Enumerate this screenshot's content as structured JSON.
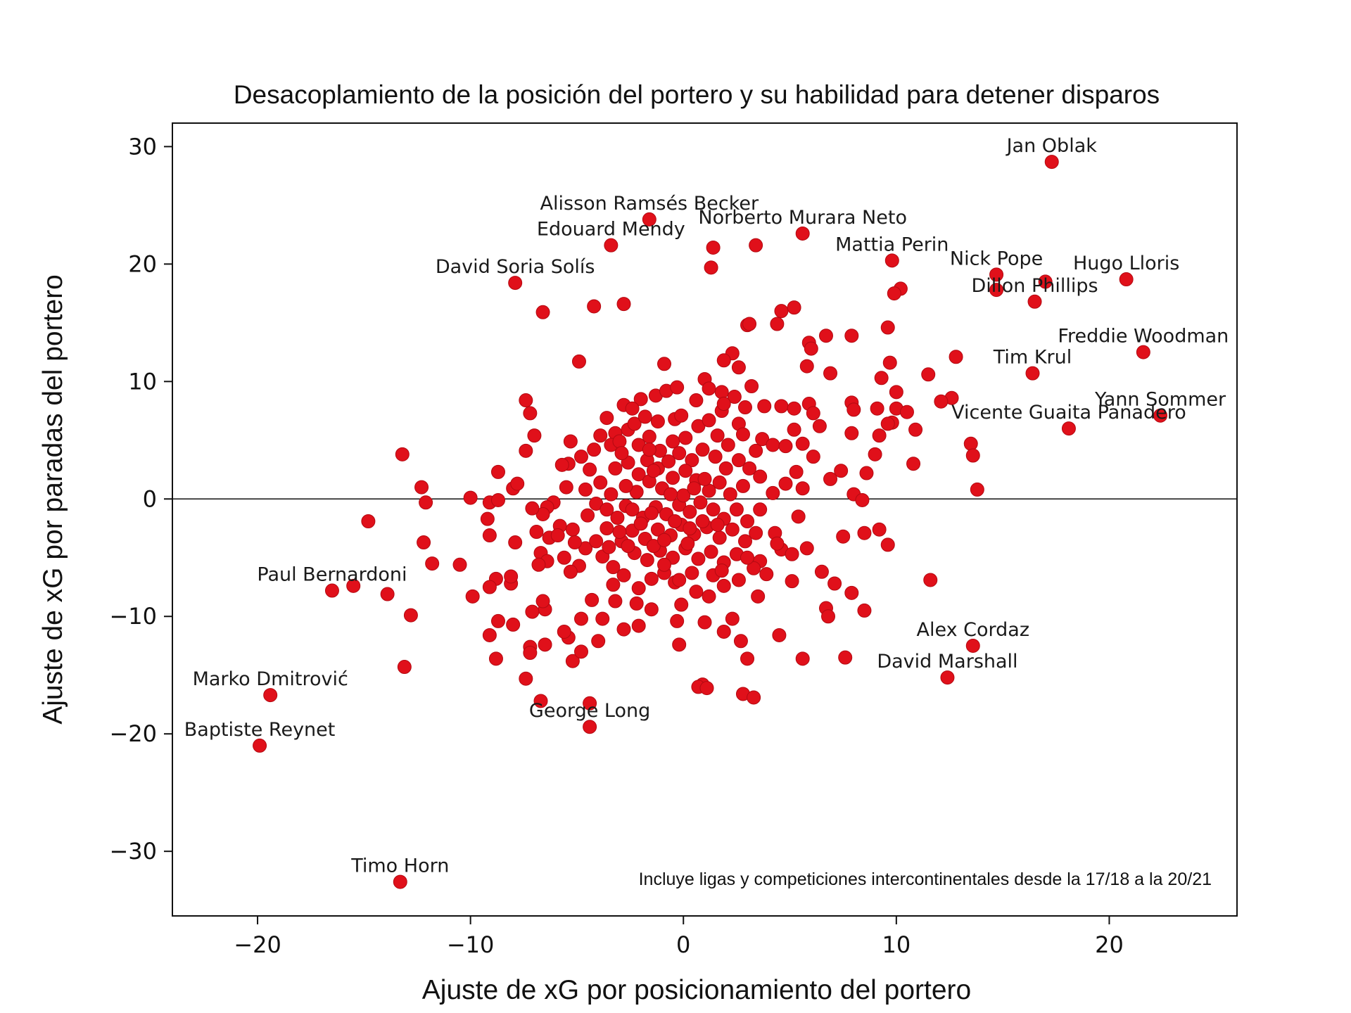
{
  "chart_data": {
    "type": "scatter",
    "title": "Desacoplamiento de la posición del portero y su habilidad para detener disparos",
    "xlabel": "Ajuste de xG por posicionamiento del portero",
    "ylabel": "Ajuste de xG por paradas del portero",
    "xlim": [
      -24,
      26
    ],
    "ylim": [
      -35.5,
      32
    ],
    "xticks": [
      -20,
      -10,
      0,
      10,
      20
    ],
    "yticks": [
      -30,
      -20,
      -10,
      0,
      10,
      20,
      30
    ],
    "xtick_labels": [
      "−20",
      "−10",
      "0",
      "10",
      "20"
    ],
    "ytick_labels": [
      "−30",
      "−20",
      "−10",
      "0",
      "10",
      "20",
      "30"
    ],
    "reference_line_y": 0,
    "grid": false,
    "point_color": "#e0101a",
    "point_edge_color": "#b30a12",
    "note": "Incluye ligas y competiciones intercontinentales desde la 17/18 a la 20/21",
    "labeled_points": [
      {
        "name": "Jan Oblak",
        "x": 17.3,
        "y": 28.7
      },
      {
        "name": "Alisson Ramsés Becker",
        "x": -1.6,
        "y": 23.8
      },
      {
        "name": "Norberto Murara Neto",
        "x": 5.6,
        "y": 22.6
      },
      {
        "name": "Edouard Mendy",
        "x": -3.4,
        "y": 21.6
      },
      {
        "name": "Mattia Perin",
        "x": 9.8,
        "y": 20.3
      },
      {
        "name": "Nick Pope",
        "x": 14.7,
        "y": 19.1
      },
      {
        "name": "Hugo Lloris",
        "x": 20.8,
        "y": 18.7
      },
      {
        "name": "Dillon Phillips",
        "x": 16.5,
        "y": 16.8
      },
      {
        "name": "David Soria Solís",
        "x": -7.9,
        "y": 18.4
      },
      {
        "name": "Freddie Woodman",
        "x": 21.6,
        "y": 12.5
      },
      {
        "name": "Tim Krul",
        "x": 16.4,
        "y": 10.7
      },
      {
        "name": "Yann Sommer",
        "x": 22.4,
        "y": 7.1
      },
      {
        "name": "Vicente Guaita Panadero",
        "x": 18.1,
        "y": 6.0
      },
      {
        "name": "Paul Bernardoni",
        "x": -16.5,
        "y": -7.8
      },
      {
        "name": "Alex Cordaz",
        "x": 13.6,
        "y": -12.5
      },
      {
        "name": "David Marshall",
        "x": 12.4,
        "y": -15.2
      },
      {
        "name": "Marko Dmitrović",
        "x": -19.4,
        "y": -16.7
      },
      {
        "name": "George Long",
        "x": -4.4,
        "y": -19.4
      },
      {
        "name": "Baptiste Reynet",
        "x": -19.9,
        "y": -21.0
      },
      {
        "name": "Timo Horn",
        "x": -13.3,
        "y": -32.6
      }
    ],
    "points": [
      [
        14.7,
        17.8
      ],
      [
        17.0,
        18.5
      ],
      [
        10.2,
        17.9
      ],
      [
        9.9,
        17.5
      ],
      [
        1.4,
        21.4
      ],
      [
        3.4,
        21.6
      ],
      [
        1.3,
        19.7
      ],
      [
        -6.6,
        15.9
      ],
      [
        -4.2,
        16.4
      ],
      [
        -2.8,
        16.6
      ],
      [
        4.6,
        16.0
      ],
      [
        5.2,
        16.3
      ],
      [
        4.4,
        14.9
      ],
      [
        3.0,
        14.8
      ],
      [
        3.1,
        14.9
      ],
      [
        6.7,
        13.9
      ],
      [
        7.9,
        13.9
      ],
      [
        9.6,
        14.6
      ],
      [
        5.9,
        13.3
      ],
      [
        6.0,
        12.8
      ],
      [
        12.8,
        12.1
      ],
      [
        -4.9,
        11.7
      ],
      [
        -0.9,
        11.5
      ],
      [
        2.3,
        12.4
      ],
      [
        1.9,
        11.8
      ],
      [
        2.6,
        11.2
      ],
      [
        5.8,
        11.3
      ],
      [
        6.9,
        10.7
      ],
      [
        9.7,
        11.6
      ],
      [
        11.5,
        10.6
      ],
      [
        9.3,
        10.3
      ],
      [
        10.0,
        9.1
      ],
      [
        12.6,
        8.6
      ],
      [
        12.1,
        8.3
      ],
      [
        -7.4,
        8.4
      ],
      [
        -7.2,
        7.3
      ],
      [
        -7.0,
        5.4
      ],
      [
        -7.4,
        4.1
      ],
      [
        -5.3,
        4.9
      ],
      [
        -5.4,
        3.0
      ],
      [
        -3.6,
        6.9
      ],
      [
        -3.2,
        5.6
      ],
      [
        -2.8,
        8.0
      ],
      [
        -2.0,
        8.5
      ],
      [
        -1.3,
        8.8
      ],
      [
        -0.8,
        9.2
      ],
      [
        -0.3,
        9.5
      ],
      [
        1.0,
        10.2
      ],
      [
        1.8,
        9.1
      ],
      [
        2.4,
        8.7
      ],
      [
        3.2,
        9.6
      ],
      [
        3.8,
        7.9
      ],
      [
        4.6,
        7.9
      ],
      [
        5.2,
        7.7
      ],
      [
        5.9,
        8.1
      ],
      [
        6.1,
        7.3
      ],
      [
        7.9,
        8.2
      ],
      [
        8.0,
        7.6
      ],
      [
        9.1,
        7.7
      ],
      [
        10.0,
        7.7
      ],
      [
        10.5,
        7.4
      ],
      [
        9.8,
        6.5
      ],
      [
        6.4,
        6.2
      ],
      [
        7.9,
        5.6
      ],
      [
        9.2,
        5.4
      ],
      [
        9.6,
        6.4
      ],
      [
        10.9,
        5.9
      ],
      [
        13.5,
        4.7
      ],
      [
        13.6,
        3.7
      ],
      [
        13.8,
        0.8
      ],
      [
        10.8,
        3.0
      ],
      [
        9.0,
        3.8
      ],
      [
        8.6,
        2.2
      ],
      [
        6.9,
        1.7
      ],
      [
        7.4,
        2.4
      ],
      [
        8.0,
        0.4
      ],
      [
        8.4,
        -0.1
      ],
      [
        7.5,
        -3.2
      ],
      [
        8.5,
        -2.9
      ],
      [
        9.2,
        -2.6
      ],
      [
        9.6,
        -3.9
      ],
      [
        7.9,
        -8.0
      ],
      [
        8.5,
        -9.5
      ],
      [
        6.7,
        -9.3
      ],
      [
        6.5,
        -6.2
      ],
      [
        7.1,
        -7.2
      ],
      [
        6.8,
        -10.0
      ],
      [
        5.1,
        -7.0
      ],
      [
        5.6,
        -13.6
      ],
      [
        7.6,
        -13.5
      ],
      [
        4.5,
        -11.6
      ],
      [
        11.6,
        -6.9
      ],
      [
        3.5,
        -8.3
      ],
      [
        3.0,
        -13.6
      ],
      [
        2.8,
        -16.6
      ],
      [
        3.3,
        -16.9
      ],
      [
        0.9,
        -15.8
      ],
      [
        0.7,
        -16.0
      ],
      [
        1.1,
        -16.1
      ],
      [
        2.3,
        -10.2
      ],
      [
        1.9,
        -11.3
      ],
      [
        2.7,
        -12.1
      ],
      [
        -0.2,
        -12.4
      ],
      [
        -0.3,
        -10.4
      ],
      [
        1.0,
        -10.5
      ],
      [
        -0.1,
        -9.0
      ],
      [
        -1.5,
        -9.4
      ],
      [
        -2.2,
        -8.9
      ],
      [
        -3.2,
        -8.7
      ],
      [
        -2.1,
        -10.8
      ],
      [
        -2.8,
        -11.1
      ],
      [
        -4.4,
        -17.4
      ],
      [
        -5.2,
        -13.8
      ],
      [
        -4.8,
        -13.0
      ],
      [
        -6.5,
        -12.4
      ],
      [
        -7.2,
        -12.6
      ],
      [
        -7.2,
        -13.1
      ],
      [
        -6.7,
        -17.2
      ],
      [
        -7.4,
        -15.3
      ],
      [
        -5.4,
        -11.8
      ],
      [
        -5.6,
        -11.3
      ],
      [
        -4.8,
        -10.2
      ],
      [
        -4.0,
        -12.1
      ],
      [
        -3.8,
        -10.2
      ],
      [
        -4.3,
        -8.6
      ],
      [
        -3.3,
        -7.3
      ],
      [
        -6.5,
        -9.4
      ],
      [
        -7.1,
        -9.6
      ],
      [
        -6.6,
        -8.7
      ],
      [
        -8.0,
        -10.7
      ],
      [
        -8.7,
        -10.4
      ],
      [
        -9.1,
        -11.6
      ],
      [
        -8.8,
        -13.6
      ],
      [
        -13.1,
        -14.3
      ],
      [
        -12.8,
        -9.9
      ],
      [
        -13.9,
        -8.1
      ],
      [
        -15.5,
        -7.4
      ],
      [
        -11.8,
        -5.5
      ],
      [
        -12.2,
        -3.7
      ],
      [
        -10.5,
        -5.6
      ],
      [
        -9.9,
        -8.3
      ],
      [
        -8.8,
        -6.8
      ],
      [
        -9.1,
        -7.5
      ],
      [
        -8.1,
        -7.2
      ],
      [
        -7.9,
        -3.7
      ],
      [
        -8.1,
        -6.6
      ],
      [
        -9.1,
        -3.1
      ],
      [
        -9.2,
        -1.7
      ],
      [
        -14.8,
        -1.9
      ],
      [
        -12.1,
        -0.3
      ],
      [
        -12.3,
        1.0
      ],
      [
        -13.2,
        3.8
      ],
      [
        -10.0,
        0.1
      ],
      [
        -9.1,
        -0.3
      ],
      [
        -8.7,
        -0.1
      ],
      [
        -8.0,
        0.9
      ],
      [
        -7.8,
        1.3
      ],
      [
        -8.7,
        2.3
      ],
      [
        -6.7,
        -4.6
      ],
      [
        -6.4,
        -5.3
      ],
      [
        -6.3,
        -3.3
      ],
      [
        -6.8,
        -5.6
      ],
      [
        -6.9,
        -2.8
      ],
      [
        -6.1,
        -0.3
      ],
      [
        -5.8,
        -2.3
      ],
      [
        -6.4,
        -0.7
      ],
      [
        -5.5,
        1.0
      ],
      [
        -5.7,
        2.9
      ],
      [
        -4.8,
        3.6
      ],
      [
        -5.2,
        -2.6
      ],
      [
        -4.6,
        -4.2
      ],
      [
        -4.9,
        -5.7
      ],
      [
        -5.3,
        -6.2
      ],
      [
        -5.1,
        -3.7
      ],
      [
        -4.5,
        -1.4
      ],
      [
        -4.6,
        0.8
      ],
      [
        -4.4,
        2.5
      ],
      [
        -4.2,
        4.2
      ],
      [
        -3.9,
        5.4
      ],
      [
        -3.4,
        4.6
      ],
      [
        -3.0,
        4.9
      ],
      [
        -2.6,
        5.9
      ],
      [
        -2.3,
        6.4
      ],
      [
        -1.8,
        7.0
      ],
      [
        -1.2,
        6.6
      ],
      [
        -0.4,
        6.8
      ],
      [
        -1.6,
        5.3
      ],
      [
        -1.1,
        4.1
      ],
      [
        -0.5,
        4.9
      ],
      [
        0.1,
        5.2
      ],
      [
        0.7,
        6.2
      ],
      [
        1.2,
        6.7
      ],
      [
        1.8,
        7.5
      ],
      [
        2.6,
        6.4
      ],
      [
        3.7,
        5.1
      ],
      [
        4.2,
        4.6
      ],
      [
        4.8,
        4.5
      ],
      [
        5.2,
        5.9
      ],
      [
        5.6,
        4.7
      ],
      [
        6.1,
        3.6
      ],
      [
        5.3,
        2.3
      ],
      [
        4.8,
        1.3
      ],
      [
        5.6,
        0.9
      ],
      [
        4.2,
        0.5
      ],
      [
        3.6,
        -0.9
      ],
      [
        4.3,
        -2.9
      ],
      [
        4.6,
        -4.3
      ],
      [
        5.1,
        -4.7
      ],
      [
        5.8,
        -4.2
      ],
      [
        5.4,
        -1.5
      ],
      [
        4.4,
        -3.8
      ],
      [
        3.6,
        -5.3
      ],
      [
        3.9,
        -6.4
      ],
      [
        3.3,
        -5.9
      ],
      [
        2.6,
        -6.9
      ],
      [
        1.9,
        -7.4
      ],
      [
        1.2,
        -8.3
      ],
      [
        0.6,
        -7.9
      ],
      [
        -0.4,
        -7.1
      ],
      [
        -0.9,
        -6.3
      ],
      [
        -1.5,
        -6.8
      ],
      [
        -2.1,
        -7.6
      ],
      [
        -2.8,
        -6.5
      ],
      [
        -3.3,
        -5.8
      ],
      [
        -3.8,
        -4.9
      ],
      [
        -4.1,
        -3.6
      ],
      [
        -3.6,
        -2.5
      ],
      [
        -3.1,
        -1.6
      ],
      [
        -2.7,
        -0.6
      ],
      [
        -3.4,
        0.4
      ],
      [
        -3.9,
        1.4
      ],
      [
        -3.2,
        2.6
      ],
      [
        -2.6,
        3.1
      ],
      [
        -2.1,
        2.1
      ],
      [
        -1.7,
        3.3
      ],
      [
        -1.2,
        2.6
      ],
      [
        -0.7,
        3.2
      ],
      [
        -0.2,
        3.9
      ],
      [
        0.4,
        3.3
      ],
      [
        0.9,
        4.2
      ],
      [
        1.5,
        3.6
      ],
      [
        2.1,
        4.6
      ],
      [
        2.6,
        3.3
      ],
      [
        3.1,
        2.6
      ],
      [
        3.6,
        1.9
      ],
      [
        2.8,
        1.1
      ],
      [
        2.2,
        0.4
      ],
      [
        1.7,
        1.4
      ],
      [
        1.2,
        0.7
      ],
      [
        0.6,
        1.6
      ],
      [
        0.1,
        2.4
      ],
      [
        -0.5,
        1.8
      ],
      [
        -1.0,
        0.9
      ],
      [
        -1.6,
        1.5
      ],
      [
        -2.2,
        0.6
      ],
      [
        -2.7,
        1.1
      ],
      [
        -2.4,
        -0.9
      ],
      [
        -1.9,
        -1.6
      ],
      [
        -1.3,
        -0.7
      ],
      [
        -0.8,
        -1.3
      ],
      [
        -0.2,
        -0.5
      ],
      [
        0.3,
        -1.1
      ],
      [
        0.8,
        -0.3
      ],
      [
        1.4,
        -0.9
      ],
      [
        1.9,
        -1.7
      ],
      [
        2.5,
        -0.9
      ],
      [
        3.0,
        -1.9
      ],
      [
        3.4,
        -2.9
      ],
      [
        2.9,
        -3.6
      ],
      [
        2.3,
        -2.6
      ],
      [
        1.7,
        -3.3
      ],
      [
        1.1,
        -2.4
      ],
      [
        0.5,
        -3.0
      ],
      [
        -0.1,
        -2.2
      ],
      [
        -0.6,
        -3.1
      ],
      [
        -1.2,
        -2.6
      ],
      [
        -1.8,
        -3.4
      ],
      [
        -2.4,
        -2.7
      ],
      [
        -2.9,
        -3.6
      ],
      [
        -2.3,
        -4.6
      ],
      [
        -1.7,
        -5.2
      ],
      [
        -1.1,
        -4.4
      ],
      [
        -0.5,
        -5.0
      ],
      [
        0.1,
        -4.2
      ],
      [
        0.7,
        -5.1
      ],
      [
        1.3,
        -4.5
      ],
      [
        1.9,
        -5.4
      ],
      [
        2.5,
        -4.7
      ],
      [
        3.0,
        -5.0
      ],
      [
        0.4,
        -6.3
      ],
      [
        -0.2,
        -6.9
      ],
      [
        1.4,
        -6.5
      ],
      [
        -1.4,
        -4.0
      ],
      [
        -0.9,
        -3.5
      ],
      [
        0.2,
        -3.8
      ],
      [
        0.9,
        -1.9
      ],
      [
        1.6,
        -2.2
      ],
      [
        -0.4,
        -1.9
      ],
      [
        -1.5,
        -1.2
      ],
      [
        -2.0,
        -2.1
      ],
      [
        0.0,
        0.3
      ],
      [
        0.5,
        0.9
      ],
      [
        -0.6,
        0.4
      ],
      [
        1.0,
        1.7
      ],
      [
        -1.4,
        2.4
      ],
      [
        2.0,
        2.6
      ],
      [
        -2.6,
        -4.0
      ],
      [
        0.3,
        -2.5
      ],
      [
        -0.9,
        -5.6
      ],
      [
        1.8,
        -6.1
      ],
      [
        -5.9,
        -3.1
      ],
      [
        -6.6,
        -1.3
      ],
      [
        -7.1,
        -0.8
      ],
      [
        -5.6,
        -5.0
      ],
      [
        -4.1,
        -0.4
      ],
      [
        -3.6,
        -0.9
      ],
      [
        -3.0,
        -2.8
      ],
      [
        -3.5,
        -4.1
      ],
      [
        2.8,
        5.5
      ],
      [
        3.4,
        4.1
      ],
      [
        1.6,
        5.4
      ],
      [
        -0.1,
        7.1
      ],
      [
        0.6,
        8.4
      ],
      [
        1.2,
        9.4
      ],
      [
        2.9,
        7.8
      ],
      [
        1.9,
        8.1
      ],
      [
        -2.4,
        7.7
      ],
      [
        -2.1,
        4.6
      ],
      [
        -1.6,
        4.2
      ],
      [
        -2.9,
        3.9
      ]
    ]
  }
}
